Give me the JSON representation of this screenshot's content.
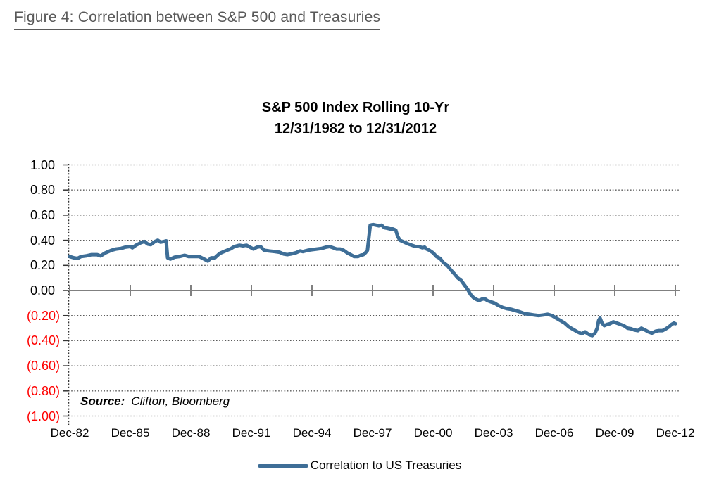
{
  "page": {
    "figure_title": "Figure 4: Correlation between S&P 500 and Treasuries"
  },
  "chart_data": {
    "type": "line",
    "title": "S&P 500 Index Rolling 10-Yr",
    "subtitle": "12/31/1982 to 12/31/2012",
    "xlim": [
      1982.96,
      2012.96
    ],
    "ylim": [
      -1.0,
      1.0
    ],
    "grid": "horizontal dotted, every 0.20",
    "legend_position": "bottom-center",
    "x_ticks": [
      {
        "year": 1982.96,
        "label": "Dec-82"
      },
      {
        "year": 1985.96,
        "label": "Dec-85"
      },
      {
        "year": 1988.96,
        "label": "Dec-88"
      },
      {
        "year": 1991.96,
        "label": "Dec-91"
      },
      {
        "year": 1994.96,
        "label": "Dec-94"
      },
      {
        "year": 1997.96,
        "label": "Dec-97"
      },
      {
        "year": 2000.96,
        "label": "Dec-00"
      },
      {
        "year": 2003.96,
        "label": "Dec-03"
      },
      {
        "year": 2006.96,
        "label": "Dec-06"
      },
      {
        "year": 2009.96,
        "label": "Dec-09"
      },
      {
        "year": 2012.96,
        "label": "Dec-12"
      }
    ],
    "y_ticks": [
      {
        "value": 1.0,
        "label": "1.00",
        "negative": false
      },
      {
        "value": 0.8,
        "label": "0.80",
        "negative": false
      },
      {
        "value": 0.6,
        "label": "0.60",
        "negative": false
      },
      {
        "value": 0.4,
        "label": "0.40",
        "negative": false
      },
      {
        "value": 0.2,
        "label": "0.20",
        "negative": false
      },
      {
        "value": 0.0,
        "label": "0.00",
        "negative": false
      },
      {
        "value": -0.2,
        "label": "(0.20)",
        "negative": true
      },
      {
        "value": -0.4,
        "label": "(0.40)",
        "negative": true
      },
      {
        "value": -0.6,
        "label": "(0.60)",
        "negative": true
      },
      {
        "value": -0.8,
        "label": "(0.80)",
        "negative": true
      },
      {
        "value": -1.0,
        "label": "(1.00)",
        "negative": true
      }
    ],
    "source_label": "Source:",
    "source_value": "Clifton, Bloomberg",
    "series": [
      {
        "name": "Correlation to US Treasuries",
        "color": "#3E6E97",
        "points": [
          [
            1982.96,
            0.27
          ],
          [
            1983.17,
            0.26
          ],
          [
            1983.34,
            0.255
          ],
          [
            1983.52,
            0.27
          ],
          [
            1983.76,
            0.275
          ],
          [
            1984.04,
            0.285
          ],
          [
            1984.32,
            0.285
          ],
          [
            1984.49,
            0.275
          ],
          [
            1984.74,
            0.3
          ],
          [
            1985.02,
            0.32
          ],
          [
            1985.26,
            0.33
          ],
          [
            1985.51,
            0.335
          ],
          [
            1985.72,
            0.345
          ],
          [
            1985.96,
            0.35
          ],
          [
            1986.06,
            0.34
          ],
          [
            1986.24,
            0.36
          ],
          [
            1986.48,
            0.38
          ],
          [
            1986.66,
            0.39
          ],
          [
            1986.83,
            0.37
          ],
          [
            1986.97,
            0.365
          ],
          [
            1987.18,
            0.39
          ],
          [
            1987.32,
            0.4
          ],
          [
            1987.46,
            0.385
          ],
          [
            1987.63,
            0.39
          ],
          [
            1987.74,
            0.395
          ],
          [
            1987.81,
            0.26
          ],
          [
            1987.95,
            0.25
          ],
          [
            1988.16,
            0.265
          ],
          [
            1988.4,
            0.27
          ],
          [
            1988.65,
            0.28
          ],
          [
            1988.86,
            0.27
          ],
          [
            1989.1,
            0.27
          ],
          [
            1989.38,
            0.27
          ],
          [
            1989.62,
            0.25
          ],
          [
            1989.8,
            0.235
          ],
          [
            1989.97,
            0.26
          ],
          [
            1990.15,
            0.26
          ],
          [
            1990.39,
            0.295
          ],
          [
            1990.67,
            0.315
          ],
          [
            1990.91,
            0.33
          ],
          [
            1991.12,
            0.35
          ],
          [
            1991.37,
            0.36
          ],
          [
            1991.54,
            0.355
          ],
          [
            1991.72,
            0.36
          ],
          [
            1991.89,
            0.345
          ],
          [
            1992.06,
            0.33
          ],
          [
            1992.24,
            0.345
          ],
          [
            1992.41,
            0.35
          ],
          [
            1992.59,
            0.32
          ],
          [
            1992.83,
            0.315
          ],
          [
            1993.11,
            0.31
          ],
          [
            1993.35,
            0.305
          ],
          [
            1993.56,
            0.29
          ],
          [
            1993.74,
            0.285
          ],
          [
            1993.91,
            0.29
          ],
          [
            1994.16,
            0.3
          ],
          [
            1994.37,
            0.315
          ],
          [
            1994.51,
            0.31
          ],
          [
            1994.75,
            0.32
          ],
          [
            1994.96,
            0.325
          ],
          [
            1995.2,
            0.33
          ],
          [
            1995.45,
            0.335
          ],
          [
            1995.66,
            0.345
          ],
          [
            1995.83,
            0.35
          ],
          [
            1996.01,
            0.34
          ],
          [
            1996.18,
            0.33
          ],
          [
            1996.36,
            0.33
          ],
          [
            1996.53,
            0.32
          ],
          [
            1996.7,
            0.3
          ],
          [
            1996.88,
            0.285
          ],
          [
            1997.05,
            0.27
          ],
          [
            1997.23,
            0.27
          ],
          [
            1997.37,
            0.28
          ],
          [
            1997.51,
            0.285
          ],
          [
            1997.61,
            0.3
          ],
          [
            1997.71,
            0.32
          ],
          [
            1997.78,
            0.42
          ],
          [
            1997.85,
            0.52
          ],
          [
            1997.99,
            0.525
          ],
          [
            1998.13,
            0.52
          ],
          [
            1998.27,
            0.515
          ],
          [
            1998.41,
            0.52
          ],
          [
            1998.55,
            0.5
          ],
          [
            1998.69,
            0.495
          ],
          [
            1998.83,
            0.49
          ],
          [
            1998.97,
            0.49
          ],
          [
            1999.11,
            0.48
          ],
          [
            1999.21,
            0.43
          ],
          [
            1999.32,
            0.4
          ],
          [
            1999.46,
            0.39
          ],
          [
            1999.6,
            0.38
          ],
          [
            1999.74,
            0.37
          ],
          [
            1999.91,
            0.36
          ],
          [
            2000.09,
            0.35
          ],
          [
            2000.26,
            0.35
          ],
          [
            2000.43,
            0.34
          ],
          [
            2000.54,
            0.345
          ],
          [
            2000.64,
            0.33
          ],
          [
            2000.78,
            0.32
          ],
          [
            2000.96,
            0.3
          ],
          [
            2001.13,
            0.27
          ],
          [
            2001.31,
            0.255
          ],
          [
            2001.48,
            0.22
          ],
          [
            2001.66,
            0.2
          ],
          [
            2001.83,
            0.165
          ],
          [
            2002.0,
            0.135
          ],
          [
            2002.18,
            0.1
          ],
          [
            2002.35,
            0.08
          ],
          [
            2002.53,
            0.04
          ],
          [
            2002.67,
            0.01
          ],
          [
            2002.81,
            -0.03
          ],
          [
            2002.95,
            -0.055
          ],
          [
            2003.09,
            -0.07
          ],
          [
            2003.23,
            -0.08
          ],
          [
            2003.37,
            -0.07
          ],
          [
            2003.51,
            -0.065
          ],
          [
            2003.65,
            -0.08
          ],
          [
            2003.82,
            -0.09
          ],
          [
            2004.0,
            -0.1
          ],
          [
            2004.2,
            -0.12
          ],
          [
            2004.41,
            -0.135
          ],
          [
            2004.62,
            -0.145
          ],
          [
            2004.83,
            -0.15
          ],
          [
            2005.04,
            -0.16
          ],
          [
            2005.25,
            -0.17
          ],
          [
            2005.49,
            -0.185
          ],
          [
            2005.74,
            -0.19
          ],
          [
            2005.95,
            -0.195
          ],
          [
            2006.19,
            -0.2
          ],
          [
            2006.43,
            -0.195
          ],
          [
            2006.64,
            -0.19
          ],
          [
            2006.85,
            -0.2
          ],
          [
            2007.06,
            -0.22
          ],
          [
            2007.27,
            -0.24
          ],
          [
            2007.48,
            -0.26
          ],
          [
            2007.69,
            -0.29
          ],
          [
            2007.9,
            -0.31
          ],
          [
            2008.11,
            -0.33
          ],
          [
            2008.32,
            -0.345
          ],
          [
            2008.49,
            -0.33
          ],
          [
            2008.67,
            -0.35
          ],
          [
            2008.84,
            -0.36
          ],
          [
            2008.98,
            -0.34
          ],
          [
            2009.09,
            -0.3
          ],
          [
            2009.16,
            -0.24
          ],
          [
            2009.23,
            -0.22
          ],
          [
            2009.33,
            -0.26
          ],
          [
            2009.44,
            -0.28
          ],
          [
            2009.58,
            -0.27
          ],
          [
            2009.72,
            -0.265
          ],
          [
            2009.89,
            -0.25
          ],
          [
            2010.06,
            -0.26
          ],
          [
            2010.24,
            -0.27
          ],
          [
            2010.41,
            -0.28
          ],
          [
            2010.59,
            -0.3
          ],
          [
            2010.76,
            -0.305
          ],
          [
            2010.93,
            -0.315
          ],
          [
            2011.11,
            -0.32
          ],
          [
            2011.28,
            -0.3
          ],
          [
            2011.46,
            -0.315
          ],
          [
            2011.63,
            -0.33
          ],
          [
            2011.8,
            -0.34
          ],
          [
            2011.98,
            -0.325
          ],
          [
            2012.15,
            -0.32
          ],
          [
            2012.33,
            -0.32
          ],
          [
            2012.5,
            -0.305
          ],
          [
            2012.64,
            -0.29
          ],
          [
            2012.78,
            -0.27
          ],
          [
            2012.89,
            -0.26
          ],
          [
            2012.96,
            -0.265
          ]
        ]
      }
    ],
    "colors": {
      "figure_title": "#595959",
      "axis": "#808080",
      "gridline": "#595959",
      "negative_label": "#FF0000",
      "series_line": "#3E6E97"
    }
  }
}
